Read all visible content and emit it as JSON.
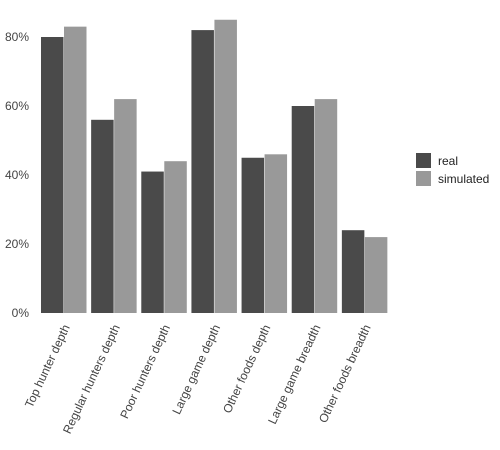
{
  "chart_data": {
    "type": "bar",
    "title": "",
    "xlabel": "",
    "ylabel": "",
    "categories": [
      "Top hunter depth",
      "Regular hunters depth",
      "Poor hunters depth",
      "Large game depth",
      "Other foods depth",
      "Large game breadth",
      "Other foods breadth"
    ],
    "series": [
      {
        "name": "real",
        "color": "#4a4a4a",
        "values": [
          0.8,
          0.56,
          0.41,
          0.82,
          0.45,
          0.6,
          0.24
        ]
      },
      {
        "name": "simulated",
        "color": "#999999",
        "values": [
          0.83,
          0.62,
          0.44,
          0.85,
          0.46,
          0.62,
          0.22
        ]
      }
    ],
    "ylim": [
      0,
      0.9
    ],
    "yticks": [
      {
        "value": 0,
        "label": "0%"
      },
      {
        "value": 0.2,
        "label": "20%"
      },
      {
        "value": 0.4,
        "label": "40%"
      },
      {
        "value": 0.6,
        "label": "60%"
      },
      {
        "value": 0.8,
        "label": "80%"
      }
    ],
    "grid": false,
    "legend_position": "right"
  }
}
